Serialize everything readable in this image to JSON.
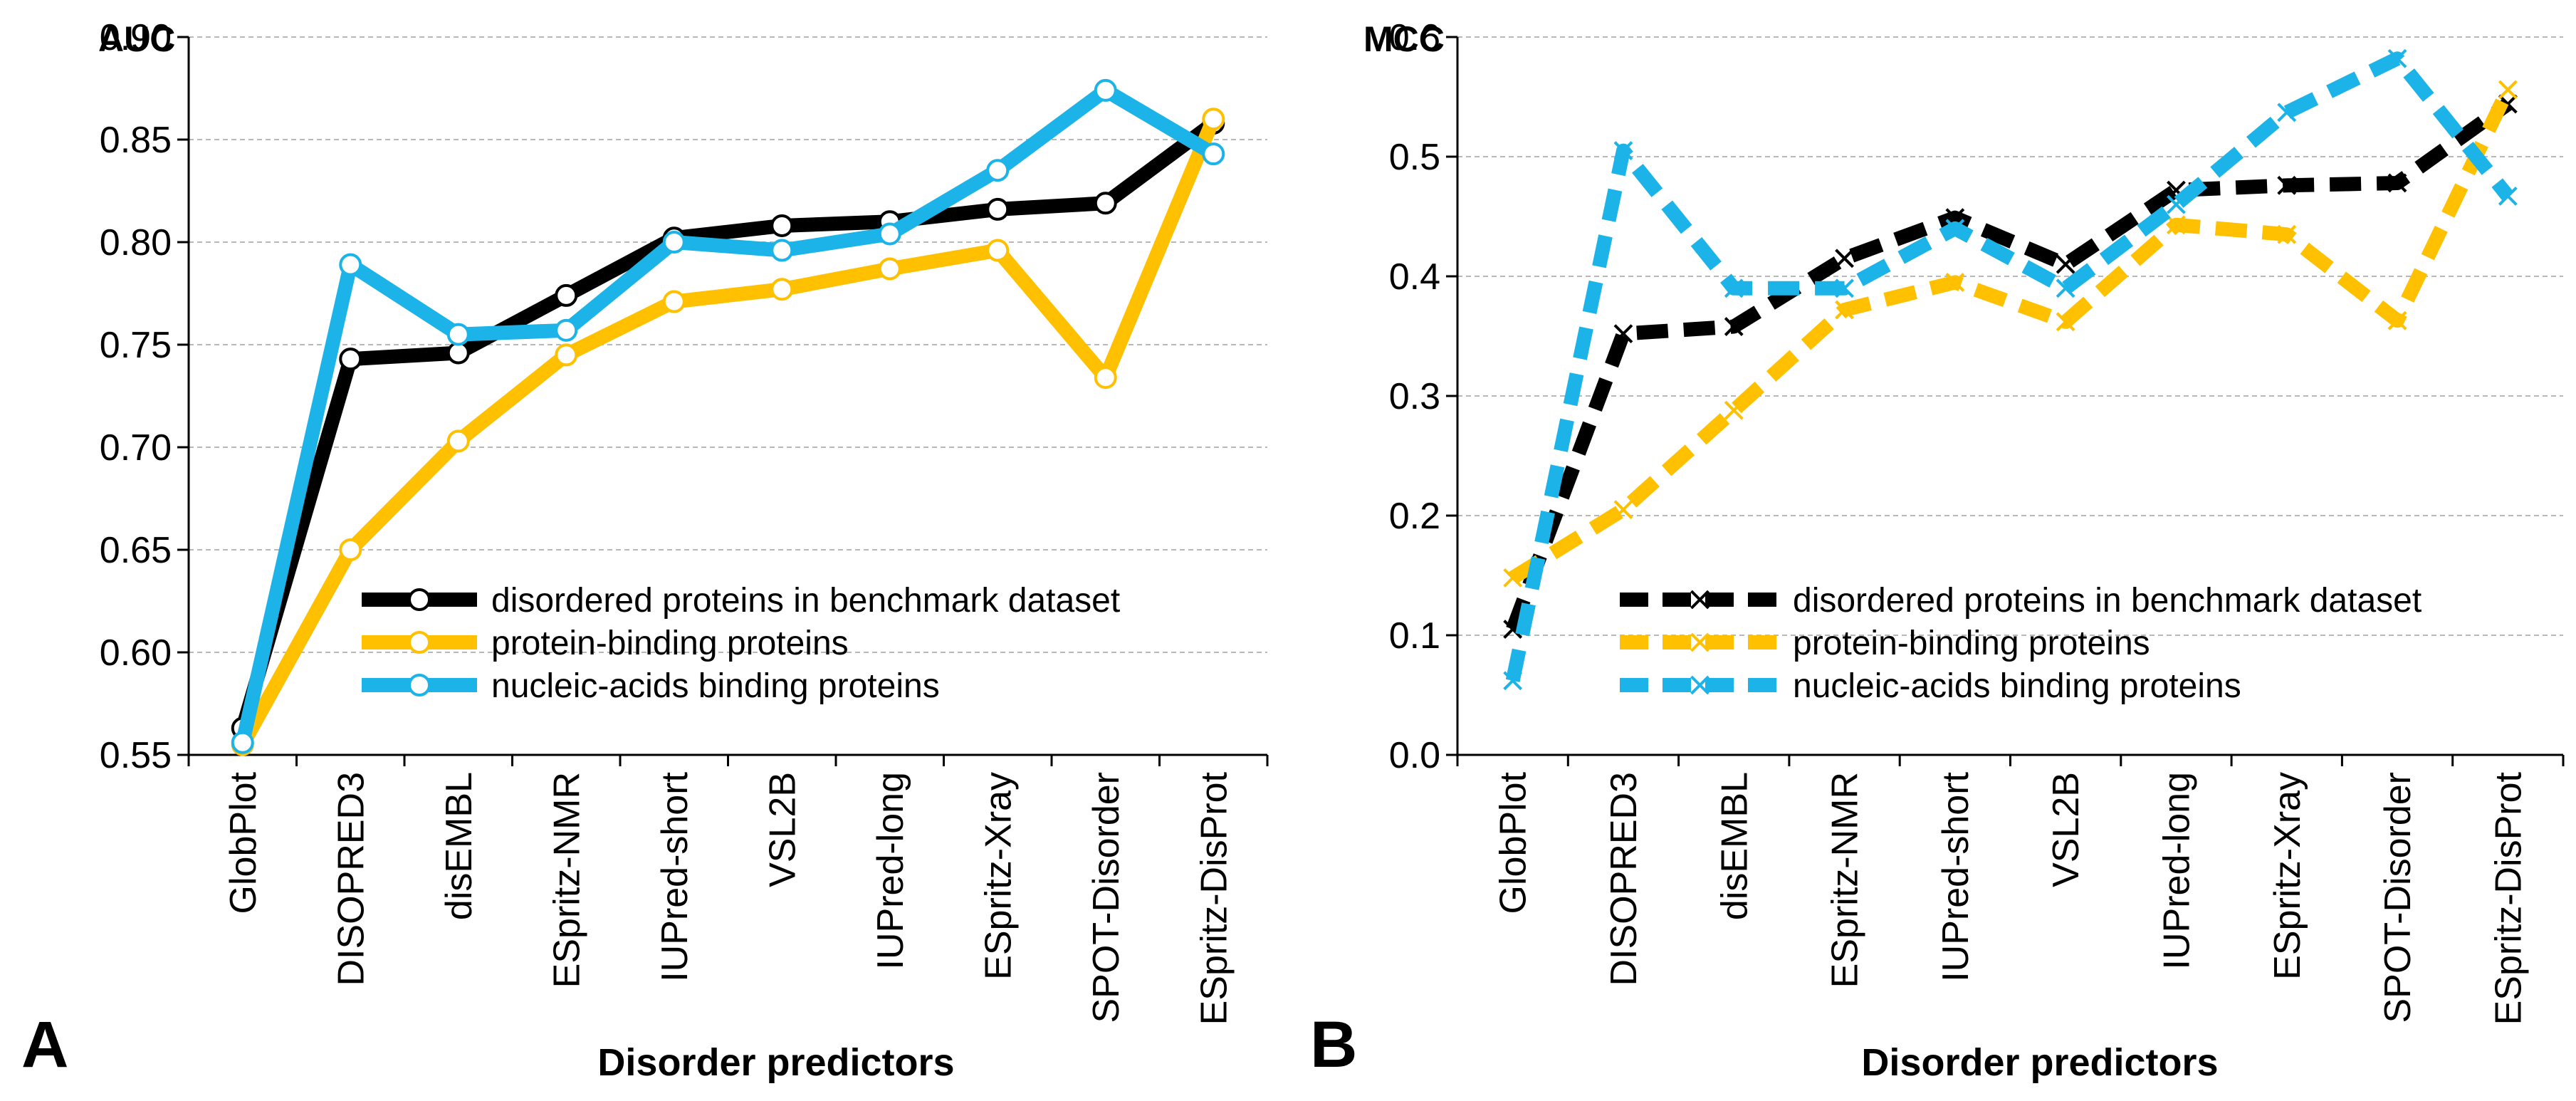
{
  "chart_data": [
    {
      "type": "line",
      "panel_label": "A",
      "ylabel": "AUC",
      "xlabel": "Disorder predictors",
      "ylim": [
        0.55,
        0.9
      ],
      "yticks": [
        "0.55",
        "0.60",
        "0.65",
        "0.70",
        "0.75",
        "0.80",
        "0.85",
        "0.90"
      ],
      "marker": "circle",
      "dashed": false,
      "categories": [
        "GlobPlot",
        "DISOPRED3",
        "disEMBL",
        "ESpritz-NMR",
        "IUPred-short",
        "VSL2B",
        "IUPred-long",
        "ESpritz-Xray",
        "SPOT-Disorder",
        "ESpritz-DisProt"
      ],
      "series": [
        {
          "name": "disordered proteins in benchmark dataset",
          "color": "#000000",
          "values": [
            0.563,
            0.743,
            0.746,
            0.774,
            0.802,
            0.808,
            0.81,
            0.816,
            0.819,
            0.858
          ]
        },
        {
          "name": "protein-binding proteins",
          "color": "#FFC000",
          "values": [
            0.555,
            0.65,
            0.703,
            0.745,
            0.771,
            0.777,
            0.787,
            0.796,
            0.734,
            0.86
          ]
        },
        {
          "name": "nucleic-acids binding proteins",
          "color": "#1CB4E8",
          "values": [
            0.556,
            0.789,
            0.755,
            0.757,
            0.8,
            0.796,
            0.804,
            0.835,
            0.874,
            0.843
          ]
        }
      ]
    },
    {
      "type": "line",
      "panel_label": "B",
      "ylabel": "MCC",
      "xlabel": "Disorder predictors",
      "ylim": [
        0.0,
        0.6
      ],
      "yticks": [
        "0.0",
        "0.1",
        "0.2",
        "0.3",
        "0.4",
        "0.5",
        "0.6"
      ],
      "marker": "x",
      "dashed": true,
      "categories": [
        "GlobPlot",
        "DISOPRED3",
        "disEMBL",
        "ESpritz-NMR",
        "IUPred-short",
        "VSL2B",
        "IUPred-long",
        "ESpritz-Xray",
        "SPOT-Disorder",
        "ESpritz-DisProt"
      ],
      "series": [
        {
          "name": "disordered proteins in benchmark dataset",
          "color": "#000000",
          "values": [
            0.105,
            0.352,
            0.358,
            0.415,
            0.449,
            0.41,
            0.472,
            0.476,
            0.478,
            0.544
          ]
        },
        {
          "name": "protein-binding proteins",
          "color": "#FFC000",
          "values": [
            0.148,
            0.205,
            0.288,
            0.372,
            0.395,
            0.362,
            0.443,
            0.435,
            0.363,
            0.556
          ]
        },
        {
          "name": "nucleic-acids binding proteins",
          "color": "#1CB4E8",
          "values": [
            0.062,
            0.505,
            0.39,
            0.39,
            0.44,
            0.39,
            0.46,
            0.537,
            0.582,
            0.467
          ]
        }
      ]
    }
  ]
}
